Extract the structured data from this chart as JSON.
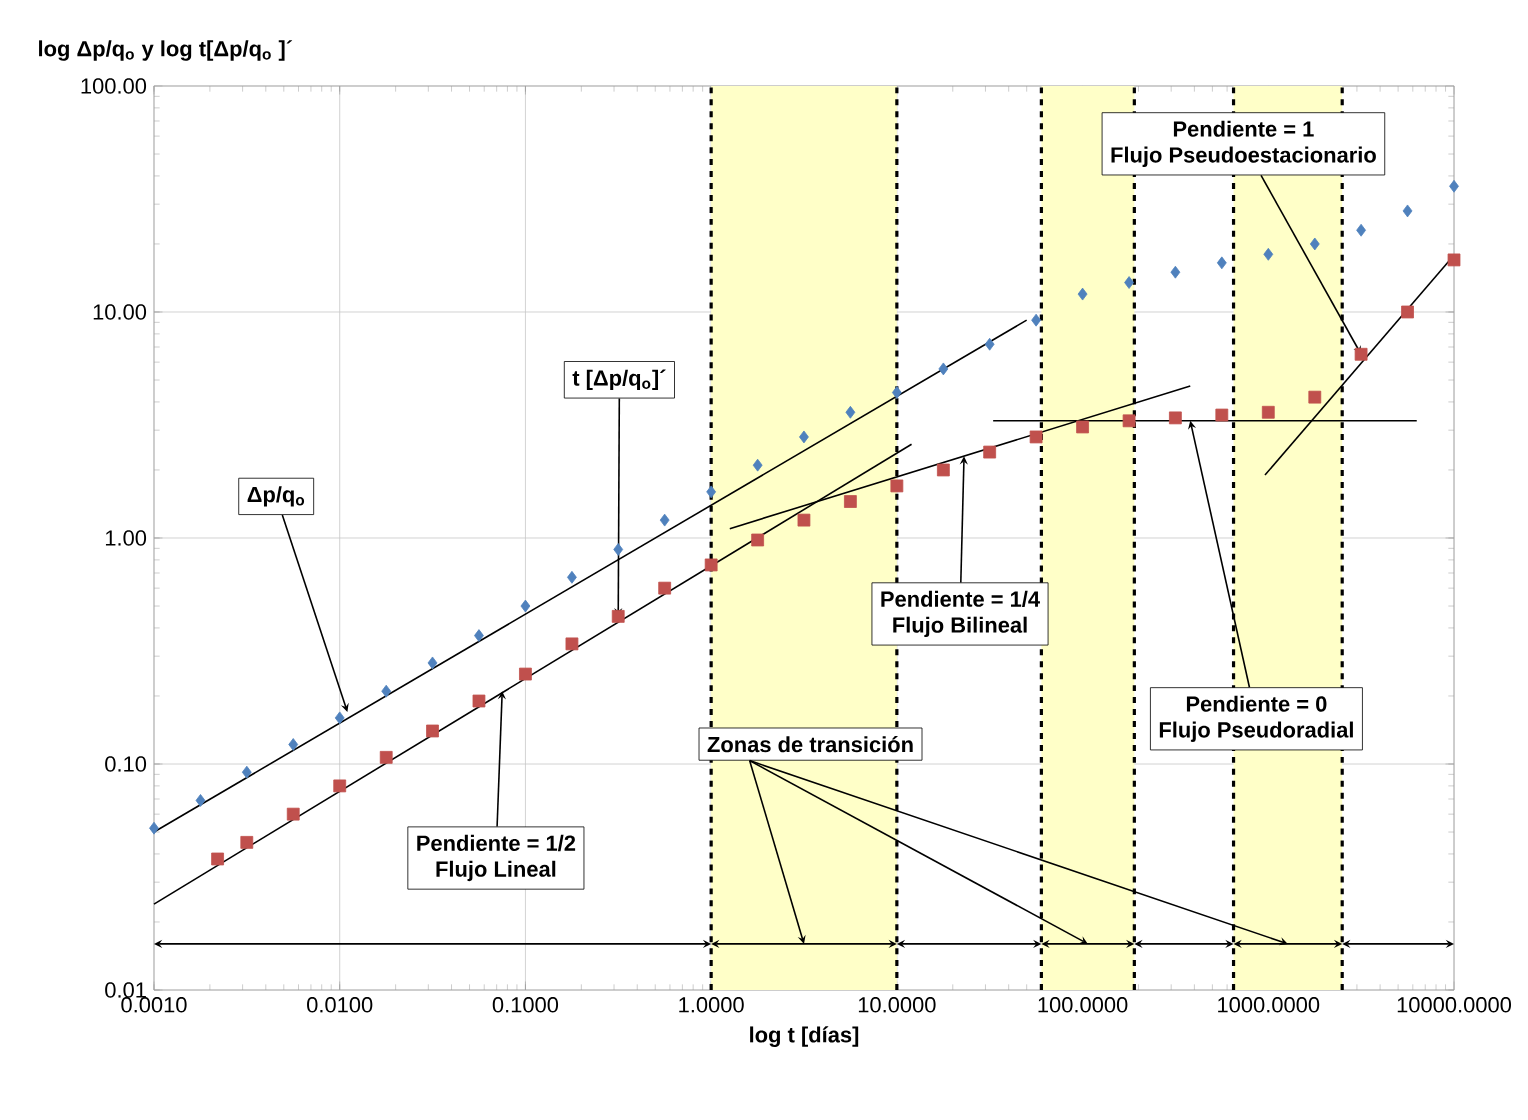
{
  "chart_data": {
    "type": "scatter",
    "xlabel": "log t [días]",
    "ylabel": "log Δp/q$_{o}$  y  log t[Δp/q$_{o}$ ]´",
    "log": "xy",
    "grid": true,
    "xlim": [
      0.001,
      10000
    ],
    "ylim": [
      0.01,
      100
    ],
    "xticks": [
      {
        "value": 0.001,
        "label": "0.0010"
      },
      {
        "value": 0.01,
        "label": "0.0100"
      },
      {
        "value": 0.1,
        "label": "0.1000"
      },
      {
        "value": 1,
        "label": "1.0000"
      },
      {
        "value": 10,
        "label": "10.0000"
      },
      {
        "value": 100,
        "label": "100.0000"
      },
      {
        "value": 1000,
        "label": "1000.0000"
      },
      {
        "value": 10000,
        "label": "10000.0000"
      }
    ],
    "yticks": [
      {
        "value": 0.01,
        "label": "0.01"
      },
      {
        "value": 0.1,
        "label": "0.10"
      },
      {
        "value": 1,
        "label": "1.00"
      },
      {
        "value": 10,
        "label": "10.00"
      },
      {
        "value": 100,
        "label": "100.00"
      }
    ],
    "series": [
      {
        "marker": "diamond",
        "color": "#4f81bd",
        "x": [
          0.001,
          0.00178,
          0.00316,
          0.00562,
          0.01,
          0.0178,
          0.0316,
          0.0562,
          0.1,
          0.178,
          0.316,
          0.562,
          1,
          1.78,
          3.16,
          5.62,
          10,
          17.8,
          31.6,
          56.2,
          100,
          178,
          316,
          562,
          1000,
          1780,
          3160,
          5620,
          10000
        ],
        "values": [
          0.052,
          0.069,
          0.092,
          0.122,
          0.16,
          0.21,
          0.28,
          0.37,
          0.5,
          0.67,
          0.89,
          1.2,
          1.6,
          2.1,
          2.8,
          3.6,
          4.4,
          5.6,
          7.2,
          9.2,
          12,
          13.5,
          15,
          16.5,
          18,
          20,
          23,
          28,
          36
        ]
      },
      {
        "marker": "square",
        "color": "#c0504d",
        "x": [
          0.0022,
          0.00316,
          0.00562,
          0.01,
          0.0178,
          0.0316,
          0.0562,
          0.1,
          0.178,
          0.316,
          0.562,
          1,
          1.78,
          3.16,
          5.62,
          10,
          17.8,
          31.6,
          56.2,
          100,
          178,
          316,
          562,
          1000,
          1780,
          3160,
          5620,
          10000
        ],
        "values": [
          0.038,
          0.045,
          0.06,
          0.08,
          0.107,
          0.14,
          0.19,
          0.25,
          0.34,
          0.45,
          0.6,
          0.76,
          0.98,
          1.2,
          1.45,
          1.7,
          2.0,
          2.4,
          2.8,
          3.1,
          3.3,
          3.4,
          3.5,
          3.6,
          4.2,
          6.5,
          10,
          17
        ]
      },
      {
        "type": "line",
        "color": "#000000",
        "x": [
          0.001,
          50
        ],
        "values": [
          0.05,
          9.2
        ]
      },
      {
        "type": "line",
        "color": "#000000",
        "x": [
          0.001,
          12
        ],
        "values": [
          0.024,
          2.6
        ]
      },
      {
        "type": "line",
        "color": "#000000",
        "x": [
          1.26,
          380
        ],
        "values": [
          1.1,
          4.7
        ]
      },
      {
        "type": "line",
        "color": "#000000",
        "x": [
          33,
          6300
        ],
        "values": [
          3.3,
          3.3
        ]
      },
      {
        "type": "line",
        "color": "#000000",
        "x": [
          960,
          9500
        ],
        "values": [
          1.9,
          17
        ]
      }
    ],
    "bands": [
      {
        "axis": "x",
        "from": 1,
        "to": 10,
        "color": "#ffffc8"
      },
      {
        "axis": "x",
        "from": 60,
        "to": 190,
        "color": "#ffffc8"
      },
      {
        "axis": "x",
        "from": 650,
        "to": 2500,
        "color": "#ffffc8"
      }
    ],
    "annotations": [
      {
        "text": "Δp/q$_{o}$",
        "x": 0.011,
        "y": 0.17
      },
      {
        "text": "t [Δp/q$_{o}$]´",
        "x": 0.316,
        "y": 0.45
      },
      {
        "text": "Pendiente = 1/2",
        "x": 0.075,
        "y": 0.21
      },
      "Flujo Lineal",
      {
        "text": "Pendiente = 1/4",
        "x": 23,
        "y": 2.3
      },
      "Flujo Bilineal",
      {
        "text": "Pendiente = 0",
        "x": 380,
        "y": 3.3
      },
      "Flujo Pseudoradial",
      "Pendiente = 1",
      {
        "text": "Flujo Pseudoestacionario",
        "x": 3160,
        "y": 6.5
      },
      "Zonas de transición"
    ]
  }
}
